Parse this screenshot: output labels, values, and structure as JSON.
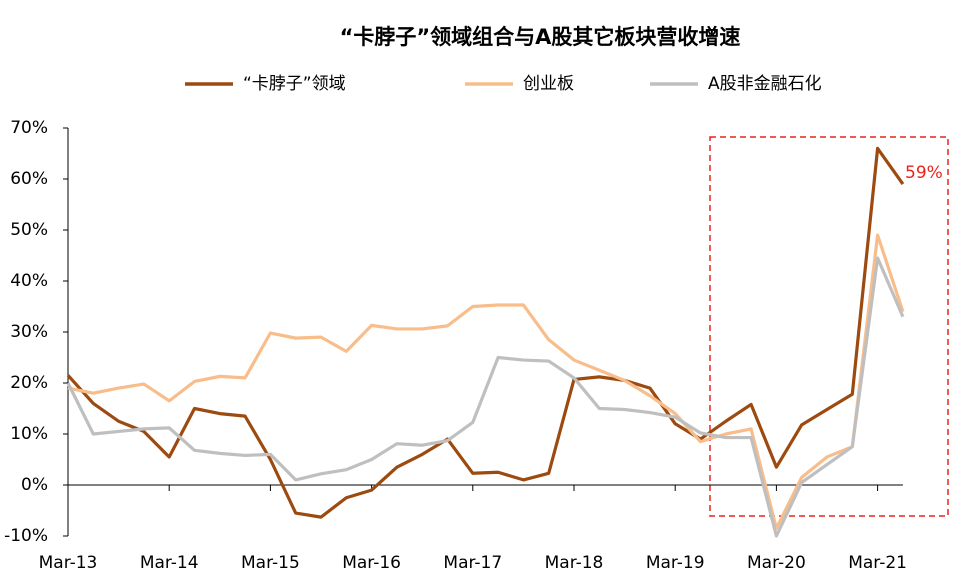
{
  "chart_data": {
    "type": "line",
    "title": "“卡脖子”领域组合与A股其它板块营收增速",
    "categories": [
      "Mar-13",
      null,
      null,
      null,
      "Mar-14",
      null,
      null,
      null,
      "Mar-15",
      null,
      null,
      null,
      "Mar-16",
      null,
      null,
      null,
      "Mar-17",
      null,
      null,
      null,
      "Mar-18",
      null,
      null,
      null,
      "Mar-19",
      null,
      null,
      null,
      "Mar-20",
      null,
      null,
      null,
      "Mar-21",
      null
    ],
    "series": [
      {
        "name": "“卡脖子”领域",
        "color": "#9c4a10",
        "values": [
          21.5,
          16,
          12.5,
          10.5,
          5.5,
          15,
          14,
          13.5,
          5,
          -5.5,
          -6.3,
          -2.5,
          -1,
          3.5,
          6,
          9,
          2.3,
          2.5,
          1,
          2.3,
          20.7,
          21.2,
          20.5,
          19,
          12,
          9,
          12.5,
          15.8,
          3.5,
          11.8,
          14.8,
          17.8,
          66,
          59
        ]
      },
      {
        "name": "创业板",
        "color": "#f8bd8a",
        "values": [
          19,
          18,
          19,
          19.8,
          16.5,
          20.3,
          21.3,
          21,
          29.8,
          28.8,
          29,
          26.2,
          31.3,
          30.6,
          30.6,
          31.2,
          35,
          35.3,
          35.3,
          28.5,
          24.5,
          22.5,
          20.5,
          17.5,
          14,
          8.5,
          10,
          11,
          -8.5,
          1.5,
          5.5,
          7.5,
          49,
          34
        ]
      },
      {
        "name": "A股非金融石化",
        "color": "#bfbfbf",
        "values": [
          20,
          10,
          10.5,
          11,
          11.2,
          6.8,
          6.2,
          5.8,
          6,
          1,
          2.2,
          3,
          5,
          8.1,
          7.8,
          8.7,
          12.3,
          25,
          24.5,
          24.3,
          21,
          15,
          14.8,
          14.2,
          13.3,
          10.2,
          9.3,
          9.3,
          -10,
          0.5,
          4,
          7.5,
          44.5,
          33
        ]
      }
    ],
    "annotation": "59%",
    "ylim": [
      -10,
      70
    ],
    "yticks": [
      {
        "value": -10,
        "label": "-10%"
      },
      {
        "value": 0,
        "label": "0%"
      },
      {
        "value": 10,
        "label": "10%"
      },
      {
        "value": 20,
        "label": "20%"
      },
      {
        "value": 30,
        "label": "30%"
      },
      {
        "value": 40,
        "label": "40%"
      },
      {
        "value": 50,
        "label": "50%"
      },
      {
        "value": 60,
        "label": "60%"
      },
      {
        "value": 70,
        "label": "70%"
      }
    ],
    "grid": false
  }
}
